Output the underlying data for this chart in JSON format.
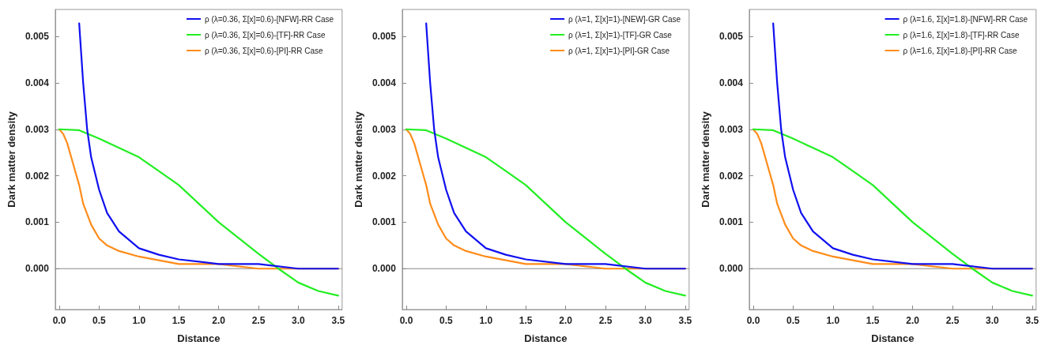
{
  "chart_data": [
    {
      "type": "line",
      "xlabel": "Distance",
      "ylabel": "Dark matter density",
      "legend": "top right",
      "grid": false,
      "marker": "none",
      "line_style": "solid",
      "xlim": [
        -0.05,
        3.55
      ],
      "ylim": [
        -0.00088,
        0.00558
      ],
      "xticks": [
        {
          "value": 0,
          "label": "0.0"
        },
        {
          "value": 0.5,
          "label": "0.5"
        },
        {
          "value": 1,
          "label": "1.0"
        },
        {
          "value": 1.5,
          "label": "1.5"
        },
        {
          "value": 2,
          "label": "2.0"
        },
        {
          "value": 2.5,
          "label": "2.5"
        },
        {
          "value": 3,
          "label": "3.0"
        },
        {
          "value": 3.5,
          "label": "3.5"
        }
      ],
      "yticks": [
        {
          "value": 0,
          "label": "0.000"
        },
        {
          "value": 0.001,
          "label": "0.001"
        },
        {
          "value": 0.002,
          "label": "0.002"
        },
        {
          "value": 0.003,
          "label": "0.003"
        },
        {
          "value": 0.004,
          "label": "0.004"
        },
        {
          "value": 0.005,
          "label": "0.005"
        }
      ],
      "ref_lines": [
        {
          "axis": "y",
          "value": 0,
          "label": null,
          "color": "#888888"
        }
      ],
      "series": [
        {
          "name": "ρ (λ=0.36, Σ[x]=0.6)-[NFW]-RR Case",
          "color": "#1010f0",
          "x": [
            0.25,
            0.3,
            0.35,
            0.4,
            0.5,
            0.6,
            0.75,
            1.0,
            1.25,
            1.5,
            2.0,
            2.5,
            3.0,
            3.5
          ],
          "values": [
            0.00528,
            0.004,
            0.003,
            0.0024,
            0.0017,
            0.0012,
            0.0008,
            0.00044,
            0.0003,
            0.0002,
            0.0001,
            0.0001,
            0,
            0
          ]
        },
        {
          "name": "ρ (λ=0.36, Σ[x]=0.6)-[TF]-RR Case",
          "color": "#22ee22",
          "x": [
            0,
            0.25,
            0.5,
            0.75,
            1.0,
            1.25,
            1.5,
            1.75,
            2.0,
            2.25,
            2.5,
            2.75,
            3.0,
            3.25,
            3.5
          ],
          "values": [
            0.003,
            0.00298,
            0.0028,
            0.0026,
            0.0024,
            0.0021,
            0.0018,
            0.0014,
            0.001,
            0.00066,
            0.00032,
            0,
            -0.0003,
            -0.00048,
            -0.00058
          ]
        },
        {
          "name": "ρ (λ=0.36, Σ[x]=0.6)-[PI]-RR Case",
          "color": "#ff8c1a",
          "x": [
            0,
            0.05,
            0.1,
            0.15,
            0.2,
            0.25,
            0.3,
            0.4,
            0.5,
            0.6,
            0.75,
            1.0,
            1.5,
            2.0,
            2.5,
            3.0,
            3.5
          ],
          "values": [
            0.003,
            0.0029,
            0.0027,
            0.0024,
            0.0021,
            0.0018,
            0.0014,
            0.00095,
            0.00065,
            0.0005,
            0.00038,
            0.00026,
            0.0001,
            0.0001,
            0,
            0,
            0
          ]
        }
      ]
    },
    {
      "type": "line",
      "xlabel": "Distance",
      "ylabel": "Dark matter density",
      "legend": "top right",
      "grid": false,
      "marker": "none",
      "line_style": "solid",
      "xlim": [
        -0.05,
        3.55
      ],
      "ylim": [
        -0.00088,
        0.00558
      ],
      "xticks": [
        {
          "value": 0,
          "label": "0.0"
        },
        {
          "value": 0.5,
          "label": "0.5"
        },
        {
          "value": 1,
          "label": "1.0"
        },
        {
          "value": 1.5,
          "label": "1.5"
        },
        {
          "value": 2,
          "label": "2.0"
        },
        {
          "value": 2.5,
          "label": "2.5"
        },
        {
          "value": 3,
          "label": "3.0"
        },
        {
          "value": 3.5,
          "label": "3.5"
        }
      ],
      "yticks": [
        {
          "value": 0,
          "label": "0.000"
        },
        {
          "value": 0.001,
          "label": "0.001"
        },
        {
          "value": 0.002,
          "label": "0.002"
        },
        {
          "value": 0.003,
          "label": "0.003"
        },
        {
          "value": 0.004,
          "label": "0.004"
        },
        {
          "value": 0.005,
          "label": "0.005"
        }
      ],
      "ref_lines": [
        {
          "axis": "y",
          "value": 0,
          "label": null,
          "color": "#888888"
        }
      ],
      "series": [
        {
          "name": "ρ (λ=1, Σ[x]=1)-[NEW]-GR Case",
          "color": "#1010f0",
          "x": [
            0.25,
            0.3,
            0.35,
            0.4,
            0.5,
            0.6,
            0.75,
            1.0,
            1.25,
            1.5,
            2.0,
            2.5,
            3.0,
            3.5
          ],
          "values": [
            0.00528,
            0.004,
            0.003,
            0.0024,
            0.0017,
            0.0012,
            0.0008,
            0.00044,
            0.0003,
            0.0002,
            0.0001,
            0.0001,
            0,
            0
          ]
        },
        {
          "name": "ρ (λ=1, Σ[x]=1)-[TF]-GR Case",
          "color": "#22ee22",
          "x": [
            0,
            0.25,
            0.5,
            0.75,
            1.0,
            1.25,
            1.5,
            1.75,
            2.0,
            2.25,
            2.5,
            2.75,
            3.0,
            3.25,
            3.5
          ],
          "values": [
            0.003,
            0.00298,
            0.0028,
            0.0026,
            0.0024,
            0.0021,
            0.0018,
            0.0014,
            0.001,
            0.00066,
            0.00032,
            0,
            -0.0003,
            -0.00048,
            -0.00058
          ]
        },
        {
          "name": "ρ (λ=1, Σ[x]=1)-[PI]-GR Case",
          "color": "#ff8c1a",
          "x": [
            0,
            0.05,
            0.1,
            0.15,
            0.2,
            0.25,
            0.3,
            0.4,
            0.5,
            0.6,
            0.75,
            1.0,
            1.5,
            2.0,
            2.5,
            3.0,
            3.5
          ],
          "values": [
            0.003,
            0.0029,
            0.0027,
            0.0024,
            0.0021,
            0.0018,
            0.0014,
            0.00095,
            0.00065,
            0.0005,
            0.00038,
            0.00026,
            0.0001,
            0.0001,
            0,
            0,
            0
          ]
        }
      ]
    },
    {
      "type": "line",
      "xlabel": "Distance",
      "ylabel": "Dark matter density",
      "legend": "top right",
      "grid": false,
      "marker": "none",
      "line_style": "solid",
      "xlim": [
        -0.05,
        3.55
      ],
      "ylim": [
        -0.00088,
        0.00558
      ],
      "xticks": [
        {
          "value": 0,
          "label": "0.0"
        },
        {
          "value": 0.5,
          "label": "0.5"
        },
        {
          "value": 1,
          "label": "1.0"
        },
        {
          "value": 1.5,
          "label": "1.5"
        },
        {
          "value": 2,
          "label": "2.0"
        },
        {
          "value": 2.5,
          "label": "2.5"
        },
        {
          "value": 3,
          "label": "3.0"
        },
        {
          "value": 3.5,
          "label": "3.5"
        }
      ],
      "yticks": [
        {
          "value": 0,
          "label": "0.000"
        },
        {
          "value": 0.001,
          "label": "0.001"
        },
        {
          "value": 0.002,
          "label": "0.002"
        },
        {
          "value": 0.003,
          "label": "0.003"
        },
        {
          "value": 0.004,
          "label": "0.004"
        },
        {
          "value": 0.005,
          "label": "0.005"
        }
      ],
      "ref_lines": [
        {
          "axis": "y",
          "value": 0,
          "label": null,
          "color": "#888888"
        }
      ],
      "series": [
        {
          "name": "ρ (λ=1.6, Σ[x]=1.8)-[NFW]-RR Case",
          "color": "#1010f0",
          "x": [
            0.25,
            0.3,
            0.35,
            0.4,
            0.5,
            0.6,
            0.75,
            1.0,
            1.25,
            1.5,
            2.0,
            2.5,
            3.0,
            3.5
          ],
          "values": [
            0.00528,
            0.004,
            0.003,
            0.0024,
            0.0017,
            0.0012,
            0.0008,
            0.00044,
            0.0003,
            0.0002,
            0.0001,
            0.0001,
            0,
            0
          ]
        },
        {
          "name": "ρ (λ=1.6, Σ[x]=1.8)-[TF]-RR Case",
          "color": "#22ee22",
          "x": [
            0,
            0.25,
            0.5,
            0.75,
            1.0,
            1.25,
            1.5,
            1.75,
            2.0,
            2.25,
            2.5,
            2.75,
            3.0,
            3.25,
            3.5
          ],
          "values": [
            0.003,
            0.00298,
            0.0028,
            0.0026,
            0.0024,
            0.0021,
            0.0018,
            0.0014,
            0.001,
            0.00066,
            0.00032,
            0,
            -0.0003,
            -0.00048,
            -0.00058
          ]
        },
        {
          "name": "ρ (λ=1.6, Σ[x]=1.8)-[PI]-RR Case",
          "color": "#ff8c1a",
          "x": [
            0,
            0.05,
            0.1,
            0.15,
            0.2,
            0.25,
            0.3,
            0.4,
            0.5,
            0.6,
            0.75,
            1.0,
            1.5,
            2.0,
            2.5,
            3.0,
            3.5
          ],
          "values": [
            0.003,
            0.0029,
            0.0027,
            0.0024,
            0.0021,
            0.0018,
            0.0014,
            0.00095,
            0.00065,
            0.0005,
            0.00038,
            0.00026,
            0.0001,
            0.0001,
            0,
            0,
            0
          ]
        }
      ]
    }
  ]
}
